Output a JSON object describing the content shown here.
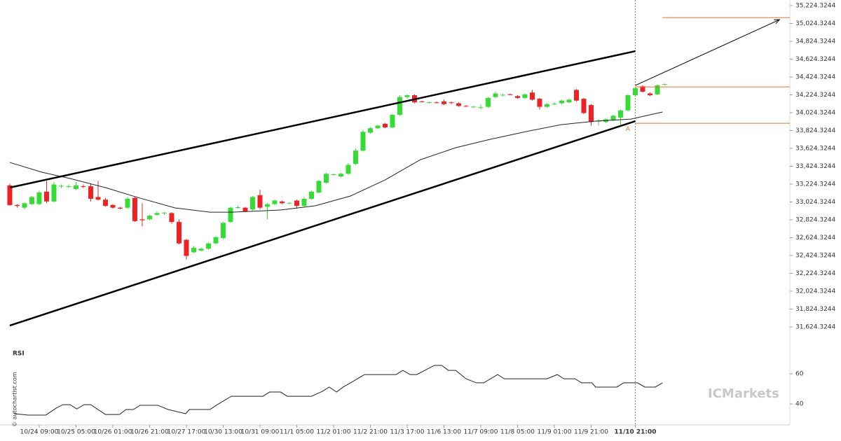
{
  "chart_data": {
    "type": "candlestick",
    "x": [
      0,
      1,
      2,
      3,
      4,
      5,
      6,
      7,
      8,
      9,
      10,
      11,
      12,
      13,
      14,
      15,
      16,
      17,
      18,
      19,
      20,
      21,
      22,
      23,
      24,
      25,
      26,
      27,
      28,
      29,
      30,
      31,
      32,
      33,
      34,
      35,
      36,
      37,
      38,
      39,
      40,
      41,
      42,
      43,
      44,
      45,
      46,
      47,
      48,
      49,
      50,
      51,
      52,
      53,
      54,
      55,
      56,
      57,
      58,
      59,
      60,
      61,
      62,
      63,
      64,
      65,
      66,
      67,
      68,
      69,
      70,
      71,
      72,
      73,
      74,
      75,
      76,
      77,
      78,
      79,
      80,
      81,
      82,
      83,
      84,
      85,
      86,
      87,
      88,
      89
    ],
    "open": [
      33210,
      32990,
      32960,
      33000,
      33000,
      33140,
      33030,
      33200,
      33195,
      33170,
      33200,
      33200,
      33080,
      33050,
      32990,
      32960,
      32960,
      33070,
      32830,
      32830,
      32880,
      32900,
      32900,
      32800,
      32600,
      32460,
      32480,
      32500,
      32560,
      32620,
      32800,
      32960,
      32960,
      32940,
      33100,
      32970,
      33000,
      33030,
      33010,
      33040,
      32980,
      33060,
      33130,
      33240,
      33330,
      33310,
      33340,
      33450,
      33600,
      33800,
      33850,
      33900,
      33860,
      34000,
      34200,
      34220,
      34150,
      34140,
      34140,
      34150,
      34140,
      34130,
      34100,
      34090,
      34080,
      34090,
      34200,
      34220,
      34230,
      34210,
      34190,
      34250,
      34180,
      34090,
      34120,
      34130,
      34140,
      34280,
      34180,
      34110,
      33930,
      33920,
      33940,
      33970,
      34050,
      34220,
      34320,
      34240,
      34230,
      34340
    ],
    "high": [
      33230,
      33000,
      33020,
      33090,
      33150,
      33260,
      33250,
      33220,
      33220,
      33250,
      33220,
      33230,
      33260,
      33070,
      33000,
      32970,
      33080,
      33080,
      33010,
      32880,
      32920,
      32910,
      32910,
      32830,
      32610,
      32530,
      32510,
      32570,
      32640,
      32800,
      32970,
      32980,
      32970,
      33090,
      33160,
      33010,
      33050,
      33040,
      33020,
      33050,
      33080,
      33150,
      33270,
      33350,
      33340,
      33350,
      33460,
      33620,
      33830,
      33860,
      33890,
      33910,
      34010,
      34220,
      34230,
      34230,
      34160,
      34150,
      34150,
      34170,
      34150,
      34140,
      34110,
      34100,
      34120,
      34200,
      34260,
      34240,
      34240,
      34220,
      34240,
      34280,
      34190,
      34130,
      34140,
      34170,
      34180,
      34290,
      34190,
      34120,
      33950,
      33960,
      34000,
      34060,
      34230,
      34310,
      34330,
      34250,
      34340,
      34350
    ],
    "low": [
      32980,
      32960,
      32940,
      32990,
      32990,
      33010,
      33020,
      33180,
      33180,
      33160,
      33180,
      33030,
      33040,
      32970,
      32950,
      32940,
      32950,
      32800,
      32750,
      32820,
      32870,
      32880,
      32780,
      32550,
      32380,
      32450,
      32470,
      32490,
      32550,
      32610,
      32790,
      32950,
      32910,
      32930,
      32940,
      32830,
      32990,
      33000,
      33000,
      32950,
      32970,
      33050,
      33120,
      33230,
      33320,
      33300,
      33330,
      33440,
      33590,
      33790,
      33840,
      33850,
      33850,
      33990,
      34180,
      34130,
      34140,
      34130,
      34130,
      34110,
      34120,
      34090,
      34090,
      34080,
      34060,
      34080,
      34190,
      34210,
      34220,
      34180,
      34180,
      34160,
      34060,
      34080,
      34110,
      34120,
      34130,
      34150,
      34010,
      33880,
      33880,
      33910,
      33930,
      33890,
      34040,
      34210,
      34250,
      34210,
      34220,
      34330
    ],
    "close": [
      32990,
      32980,
      33010,
      33080,
      33130,
      33030,
      33220,
      33205,
      33200,
      33210,
      33195,
      33060,
      33050,
      32980,
      32960,
      32950,
      33060,
      32810,
      32820,
      32870,
      32900,
      32905,
      32800,
      32560,
      32420,
      32510,
      32500,
      32560,
      32630,
      32790,
      32960,
      32965,
      32920,
      33080,
      32960,
      33000,
      33040,
      33010,
      33015,
      32980,
      33060,
      33140,
      33260,
      33340,
      33335,
      33340,
      33440,
      33600,
      33810,
      33850,
      33880,
      33860,
      34000,
      34200,
      34220,
      34140,
      34145,
      34142,
      34138,
      34120,
      34135,
      34100,
      34098,
      34092,
      34085,
      34190,
      34240,
      34225,
      34228,
      34190,
      34230,
      34170,
      34090,
      34120,
      34125,
      34160,
      34170,
      34160,
      34020,
      33920,
      33932,
      33950,
      33990,
      34050,
      34220,
      34300,
      34260,
      34220,
      34330,
      34345
    ],
    "up_color": "#33dd33",
    "down_color": "#ee2222",
    "xlim": [
      -1.33,
      106
    ],
    "ylim": [
      31522.4,
      35287.1
    ],
    "yticks": [
      {
        "value": 35224.3244,
        "label": "35,224.3244"
      },
      {
        "value": 35024.3244,
        "label": "35,024.3244"
      },
      {
        "value": 34824.3244,
        "label": "34,824.3244"
      },
      {
        "value": 34624.3244,
        "label": "34,624.3244"
      },
      {
        "value": 34424.3244,
        "label": "34,424.3244"
      },
      {
        "value": 34224.3244,
        "label": "34,224.3244"
      },
      {
        "value": 34024.3244,
        "label": "34,024.3244"
      },
      {
        "value": 33824.3244,
        "label": "33,824.3244"
      },
      {
        "value": 33624.3244,
        "label": "33,624.3244"
      },
      {
        "value": 33424.3244,
        "label": "33,424.3244"
      },
      {
        "value": 33224.3244,
        "label": "33,224.3244"
      },
      {
        "value": 33024.3244,
        "label": "33,024.3244"
      },
      {
        "value": 32824.3244,
        "label": "32,824.3244"
      },
      {
        "value": 32624.3244,
        "label": "32,624.3244"
      },
      {
        "value": 32424.3244,
        "label": "32,424.3244"
      },
      {
        "value": 32224.3244,
        "label": "32,224.3244"
      },
      {
        "value": 32024.3244,
        "label": "32,024.3244"
      },
      {
        "value": 31824.3244,
        "label": "31,824.3244"
      },
      {
        "value": 31624.3244,
        "label": "31,624.3244"
      }
    ],
    "xticks": [
      {
        "value": 4,
        "label": "10/24 09:00"
      },
      {
        "value": 9,
        "label": "10/25 05:00"
      },
      {
        "value": 14,
        "label": "10/26 01:00"
      },
      {
        "value": 19,
        "label": "10/26 21:00"
      },
      {
        "value": 24,
        "label": "10/27 17:00"
      },
      {
        "value": 29,
        "label": "10/30 13:00"
      },
      {
        "value": 34,
        "label": "10/31 09:00"
      },
      {
        "value": 39,
        "label": "11/1 05:00"
      },
      {
        "value": 44,
        "label": "11/2 01:00"
      },
      {
        "value": 49,
        "label": "11/2 21:00"
      },
      {
        "value": 54,
        "label": "11/3 17:00"
      },
      {
        "value": 59,
        "label": "11/6 13:00"
      },
      {
        "value": 64,
        "label": "11/7 09:00"
      },
      {
        "value": 69,
        "label": "11/8 05:00"
      },
      {
        "value": 74,
        "label": "11/9 01:00"
      },
      {
        "value": 79,
        "label": "11/9 21:00"
      },
      {
        "value": 85,
        "label": "11/10 21:00"
      }
    ],
    "event_x": 85,
    "ma": {
      "color": "#222222",
      "x": [
        0,
        4.4,
        8.2,
        13,
        17.7,
        22.5,
        27.2,
        30.1,
        36.8,
        41.5,
        46.3,
        51,
        55.8,
        60.6,
        65.3,
        70.1,
        74.9,
        79.6,
        84.4,
        88.7
      ],
      "values": [
        33467,
        33357,
        33287,
        33185,
        33067,
        32957,
        32910,
        32910,
        32934,
        32981,
        33091,
        33271,
        33498,
        33632,
        33726,
        33812,
        33890,
        33930,
        33953,
        34032
      ]
    },
    "trendlines": [
      {
        "x": [
          0,
          85
        ],
        "y": [
          33185,
          34714
        ]
      },
      {
        "x": [
          0,
          85
        ],
        "y": [
          31640,
          33930
        ]
      }
    ],
    "arrow": {
      "x": [
        85,
        104.6
      ],
      "y": [
        34330,
        35067
      ]
    },
    "level_color": "#e07030",
    "levels": [
      {
        "x": [
          88.7,
          106
        ],
        "y": 35090
      },
      {
        "x": [
          85,
          106
        ],
        "y": 34314
      },
      {
        "x": [
          85,
          106
        ],
        "y": 33906
      }
    ],
    "pattern_label": {
      "text": "A",
      "x": 84,
      "y": 33840
    },
    "rsi": {
      "title": "RSI",
      "color": "#222222",
      "ylim": [
        25.6,
        73.5
      ],
      "yticks": [
        40,
        60
      ],
      "x": [
        0.6,
        2.5,
        4.9,
        6.3,
        7.2,
        8.2,
        9.1,
        10.1,
        11,
        13,
        14.9,
        15.8,
        16.8,
        17.7,
        20.1,
        21.5,
        23.9,
        24.4,
        27.2,
        28.2,
        30.1,
        34.4,
        35.3,
        36.8,
        37.7,
        41,
        42.5,
        43.4,
        44.4,
        45.3,
        46.3,
        48.2,
        52.5,
        53.4,
        54.4,
        55.3,
        57.7,
        58.7,
        59.6,
        60.6,
        62,
        63.4,
        64.4,
        66.3,
        67.2,
        73,
        74.4,
        75.3,
        76.8,
        77.7,
        79.1,
        79.6,
        82.5,
        83.4,
        85.3,
        86.3,
        87.7,
        88.7
      ],
      "values": [
        33.5,
        32.6,
        32.6,
        37.2,
        39.5,
        39.5,
        36.7,
        39.5,
        39.5,
        33.0,
        33.0,
        36.3,
        36.3,
        39.1,
        39.1,
        36.3,
        33.5,
        36.3,
        36.3,
        39.5,
        45.1,
        45.1,
        47.9,
        47.9,
        45.1,
        45.1,
        48.4,
        51.2,
        47.9,
        51.2,
        54.0,
        59.5,
        59.5,
        62.3,
        59.5,
        59.5,
        65.6,
        65.6,
        62.3,
        62.3,
        56.7,
        54.0,
        54.0,
        59.5,
        56.7,
        56.7,
        59.5,
        56.7,
        56.7,
        54.0,
        54.0,
        51.2,
        51.2,
        54.0,
        54.0,
        51.2,
        51.2,
        54.0
      ]
    },
    "watermark": "© autochartist.com",
    "brand": "ICMarkets"
  }
}
